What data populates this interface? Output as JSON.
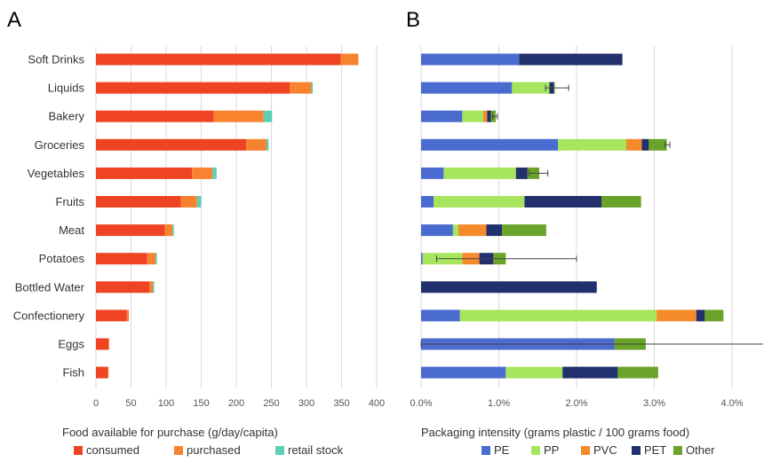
{
  "chart_data": [
    {
      "type": "bar",
      "orientation": "horizontal",
      "stacked": true,
      "panel_label": "A",
      "categories": [
        "Soft Drinks",
        "Liquids",
        "Bakery",
        "Groceries",
        "Vegetables",
        "Fruits",
        "Meat",
        "Potatoes",
        "Bottled Water",
        "Confectionery",
        "Eggs",
        "Fish"
      ],
      "series": [
        {
          "name": "consumed",
          "color": "#ee4424",
          "values": [
            349,
            276,
            168,
            214,
            137,
            121,
            98,
            73,
            76,
            44,
            18,
            17
          ]
        },
        {
          "name": "purchased",
          "color": "#f9822e",
          "values": [
            25,
            31,
            71,
            29,
            29,
            23,
            11,
            12,
            5,
            3,
            1,
            1
          ]
        },
        {
          "name": "retail stock",
          "color": "#5fcfb4",
          "values": [
            0,
            2,
            12,
            3,
            6,
            6,
            2,
            2,
            2,
            0,
            0,
            0
          ]
        }
      ],
      "xlim": [
        0,
        400
      ],
      "xticks": [
        0,
        50,
        100,
        150,
        200,
        250,
        300,
        350,
        400
      ],
      "xtick_labels": [
        "0",
        "50",
        "100",
        "150",
        "200",
        "250",
        "300",
        "350",
        "400"
      ],
      "xlabel": "Food available for purchase (g/day/capita)",
      "grid": "vertical",
      "legend": "bottom"
    },
    {
      "type": "bar",
      "orientation": "horizontal",
      "stacked": true,
      "panel_label": "B",
      "categories": [
        "Soft Drinks",
        "Liquids",
        "Bakery",
        "Groceries",
        "Vegetables",
        "Fruits",
        "Meat",
        "Potatoes",
        "Bottled Water",
        "Confectionery",
        "Eggs",
        "Fish"
      ],
      "series": [
        {
          "name": "PE",
          "color": "#4a6bd0",
          "values": [
            1.26,
            1.17,
            0.53,
            1.76,
            0.29,
            0.16,
            0.41,
            0.02,
            0,
            0.5,
            2.49,
            1.09
          ]
        },
        {
          "name": "PP",
          "color": "#a8e55e",
          "values": [
            0,
            0.48,
            0.27,
            0.88,
            0.93,
            1.17,
            0.07,
            0.51,
            0,
            2.53,
            0,
            0.73
          ]
        },
        {
          "name": "PVC",
          "color": "#f58a2b",
          "values": [
            0,
            0,
            0.05,
            0.2,
            0,
            0,
            0.36,
            0.22,
            0,
            0.51,
            0,
            0
          ]
        },
        {
          "name": "PET",
          "color": "#23306e",
          "values": [
            1.33,
            0.06,
            0.05,
            0.09,
            0.15,
            0.99,
            0.2,
            0.18,
            2.26,
            0.11,
            0,
            0.71
          ]
        },
        {
          "name": "Other",
          "color": "#6aa32a",
          "values": [
            0,
            0.01,
            0.06,
            0.23,
            0.15,
            0.51,
            0.57,
            0.16,
            0,
            0.24,
            0.4,
            0.52
          ]
        }
      ],
      "error_bars": [
        {
          "category": "Liquids",
          "low": 1.6,
          "high": 1.9
        },
        {
          "category": "Bakery",
          "low": 0.92,
          "high": 0.98
        },
        {
          "category": "Groceries",
          "low": 3.14,
          "high": 3.2
        },
        {
          "category": "Vegetables",
          "low": 1.39,
          "high": 1.63
        },
        {
          "category": "Potatoes",
          "low": 0.2,
          "high": 2.0
        },
        {
          "category": "Eggs",
          "low": 0,
          "high": 4.4
        }
      ],
      "xlim": [
        0,
        4
      ],
      "xticks": [
        0,
        1,
        2,
        3,
        4
      ],
      "xtick_labels": [
        "0.0%",
        "1.0%",
        "2.0%",
        "3.0%",
        "4.0%"
      ],
      "xlabel": "Packaging intensity (grams plastic / 100 grams food)",
      "grid": "vertical",
      "legend": "bottom"
    }
  ]
}
